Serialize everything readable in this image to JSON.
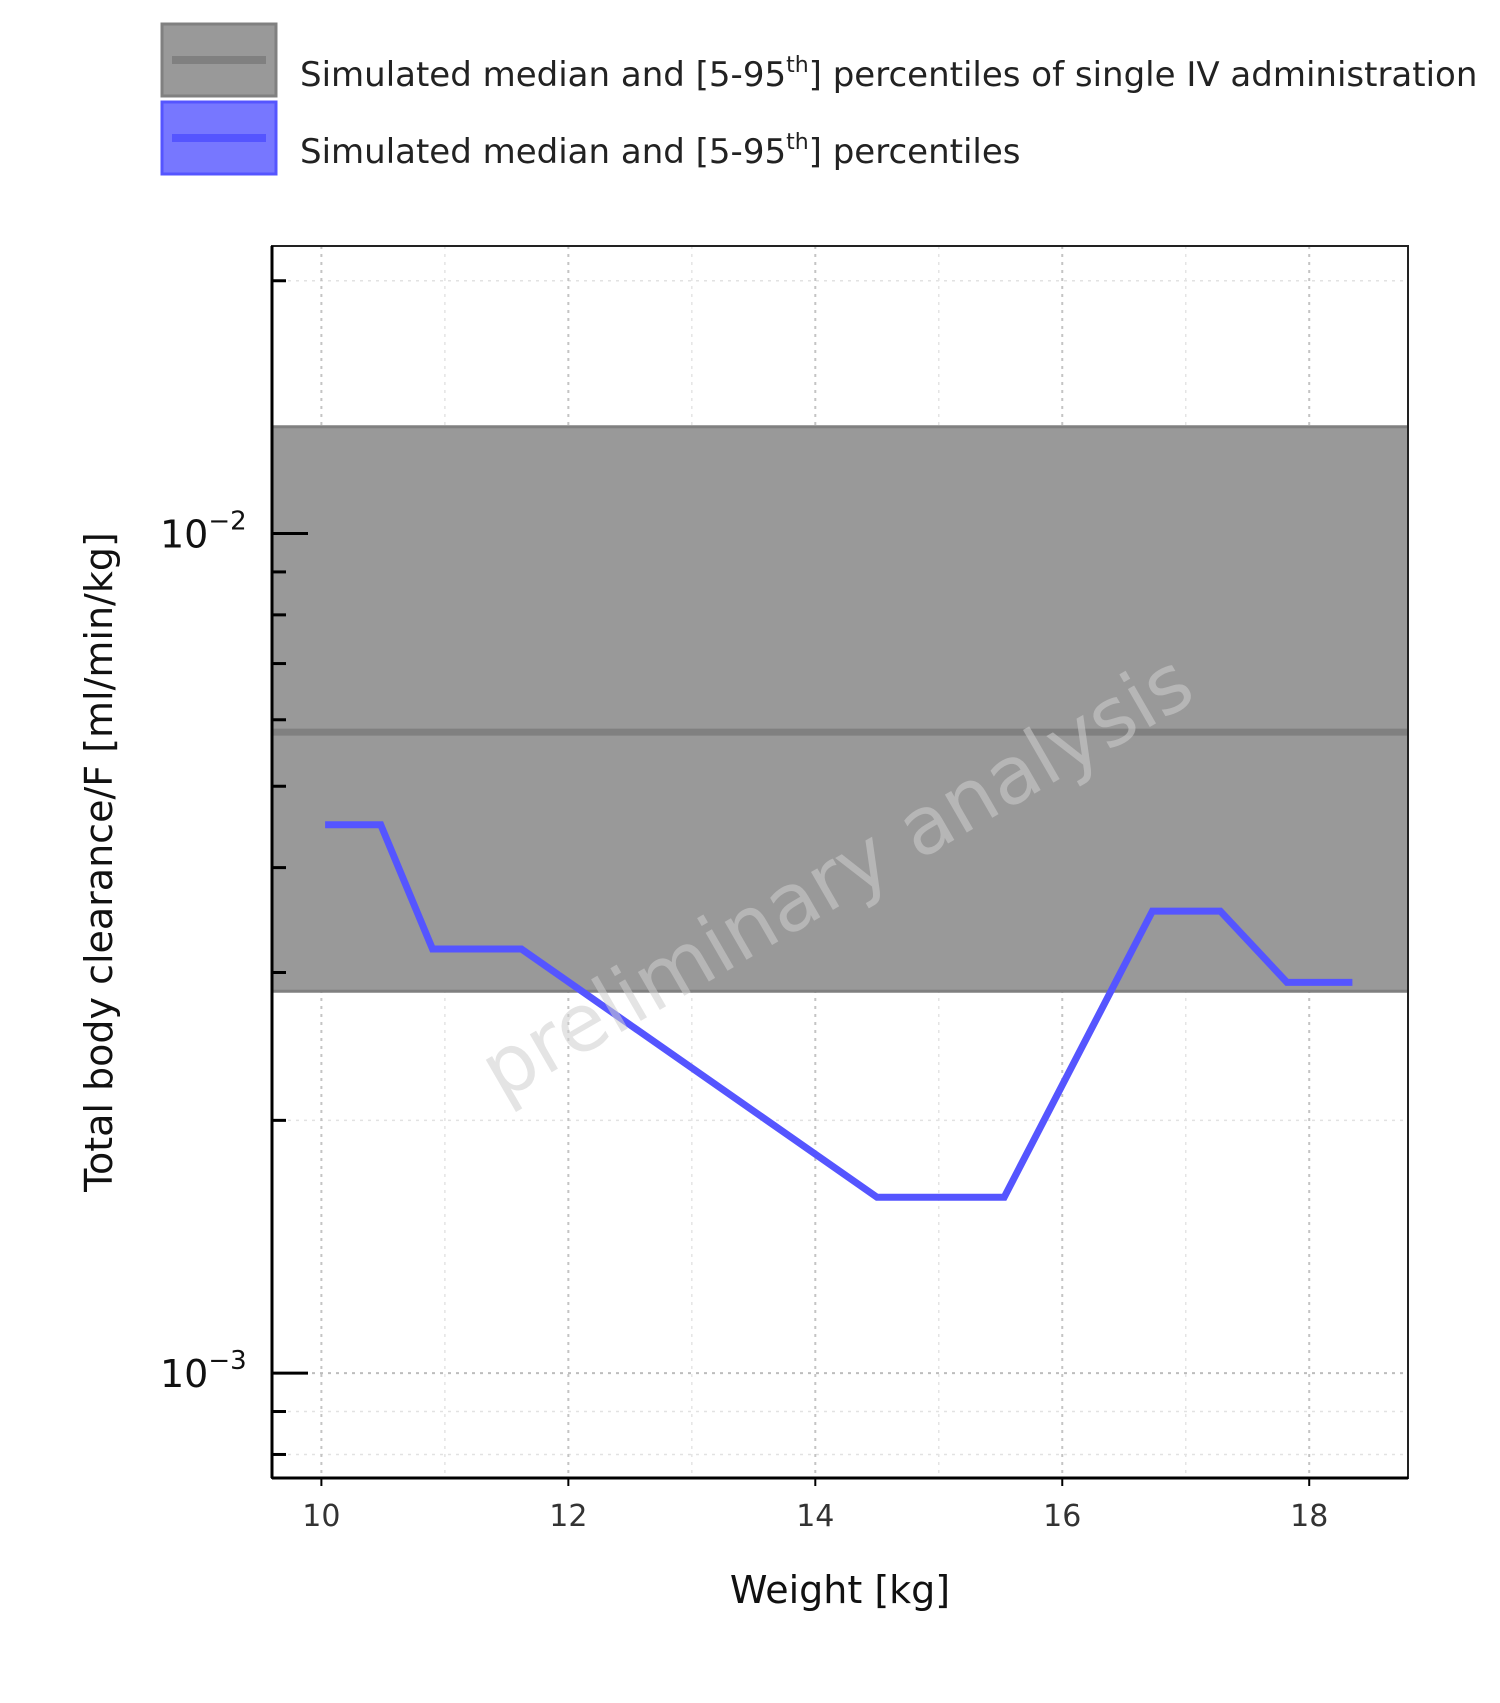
{
  "chart_data": {
    "type": "line",
    "xlabel": "Weight [kg]",
    "ylabel": "Total body clearance/F [ml/min/kg]",
    "xlim": [
      9.6,
      18.8
    ],
    "ylim": [
      0.00075,
      0.022
    ],
    "y_scale": "log",
    "x_ticks": [
      10,
      12,
      14,
      16,
      18
    ],
    "y_major_ticks": [
      {
        "value": 0.01,
        "base": "10",
        "exp": "−2"
      },
      {
        "value": 0.001,
        "base": "10",
        "exp": "−3"
      }
    ],
    "grid": true,
    "legend_position": "top",
    "watermark": "preliminary analysis",
    "series": [
      {
        "name": "Simulated median and [5-95th] percentiles of single IV administration",
        "kind": "band",
        "median": 0.0058,
        "lower": 0.00285,
        "upper": 0.0134,
        "color": "#999999",
        "line_color": "#808080"
      },
      {
        "name": "Simulated median and [5-95th] percentiles",
        "kind": "line",
        "color": "#5555ff",
        "x": [
          10.03,
          10.48,
          10.9,
          11.62,
          14.5,
          15.53,
          16.73,
          17.28,
          17.82,
          18.35
        ],
        "y": [
          0.0045,
          0.0045,
          0.0032,
          0.0032,
          0.00162,
          0.00162,
          0.00355,
          0.00355,
          0.00292,
          0.00292
        ]
      }
    ]
  },
  "legend": {
    "items": [
      {
        "prefix": "Simulated median and [5-95",
        "sup": "th",
        "suffix": "] percentiles of single IV administration"
      },
      {
        "prefix": "Simulated median and [5-95",
        "sup": "th",
        "suffix": "] percentiles"
      }
    ]
  }
}
